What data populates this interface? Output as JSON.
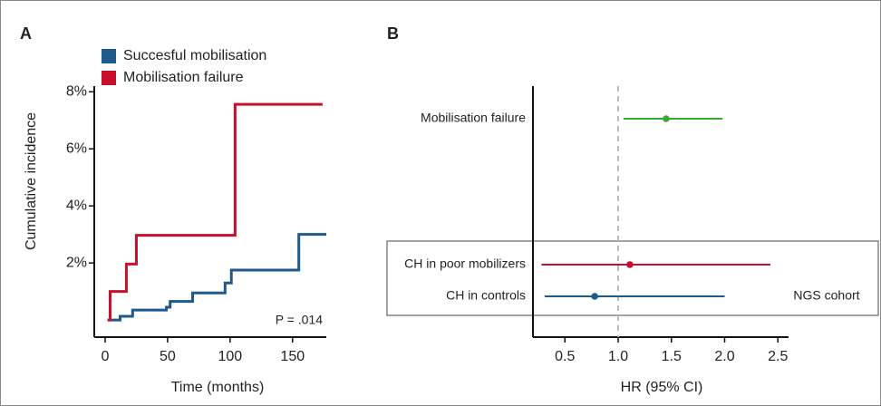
{
  "chart_data": [
    {
      "type": "step",
      "panel_label": "A",
      "x_label": "Time (months)",
      "y_label": "Cumulative incidence",
      "xlim": [
        -8.7,
        177
      ],
      "ylim": [
        -0.6,
        8.2
      ],
      "xticks": [
        0,
        50,
        100,
        150
      ],
      "yticks": [
        {
          "value": 2,
          "label": "2%"
        },
        {
          "value": 4,
          "label": "4%"
        },
        {
          "value": 6,
          "label": "6%"
        },
        {
          "value": 8,
          "label": "8%"
        }
      ],
      "series": [
        {
          "name": "Succesful mobilisation",
          "color": "#1f5a8c",
          "x": [
            2,
            12,
            22,
            49,
            52,
            70,
            96,
            101,
            155,
            177
          ],
          "values": [
            0,
            0.13,
            0.35,
            0.45,
            0.65,
            0.95,
            1.3,
            1.75,
            3.0,
            3.0
          ]
        },
        {
          "name": "Mobilisation failure",
          "color": "#c8102e",
          "x": [
            2,
            4,
            17,
            25,
            104,
            174
          ],
          "values": [
            0,
            1.0,
            1.96,
            2.97,
            7.56,
            7.56
          ]
        }
      ],
      "annotation": "P = .014"
    },
    {
      "type": "forest",
      "panel_label": "B",
      "x_label": "HR (95% CI)",
      "xlim": [
        0.2,
        2.6
      ],
      "xticks": [
        0.5,
        {
          "value": 1,
          "label": "1.0"
        },
        1.5,
        {
          "value": 2,
          "label": "2.0"
        },
        2.5
      ],
      "reference_line": 1,
      "categories": [
        "Mobilisation failure",
        "CH in poor mobilizers",
        "CH in controls"
      ],
      "values": [
        1.45,
        1.11,
        0.78
      ],
      "lower": [
        1.05,
        0.28,
        0.31
      ],
      "upper": [
        1.98,
        2.43,
        2.0
      ],
      "colors": [
        "#3aaa35",
        "#c8102e",
        "#1f5a8c"
      ],
      "annotation": "NGS cohort"
    }
  ]
}
